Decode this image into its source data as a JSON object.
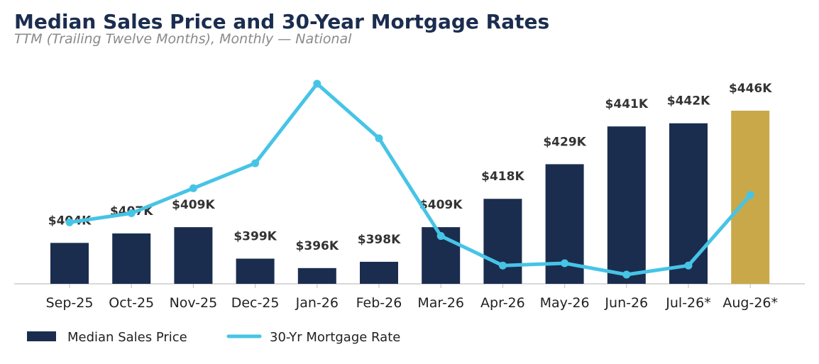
{
  "chart_data": {
    "type": "bar",
    "title": "Median Sales Price and 30-Year Mortgage Rates",
    "subtitle": "TTM (Trailing Twelve Months), Monthly — National",
    "categories": [
      "Sep-25",
      "Oct-25",
      "Nov-25",
      "Dec-25",
      "Jan-26",
      "Feb-26",
      "Mar-26",
      "Apr-26",
      "May-26",
      "Jun-26",
      "Jul-26*",
      "Aug-26*"
    ],
    "series": [
      {
        "name": "Median Sales Price",
        "type": "bar",
        "values": [
          404,
          407,
          409,
          399,
          396,
          398,
          409,
          418,
          429,
          441,
          442,
          446
        ],
        "labels": [
          "$404K",
          "$407K",
          "$409K",
          "$399K",
          "$396K",
          "$398K",
          "$409K",
          "$418K",
          "$429K",
          "$441K",
          "$442K",
          "$446K"
        ],
        "color": "#1b2d4f",
        "highlight_color": "#c9a84a",
        "highlight_category": "Aug-26*"
      },
      {
        "name": "30-Yr Mortgage Rate",
        "type": "line",
        "values": [
          6.23,
          6.27,
          6.38,
          6.49,
          6.84,
          6.6,
          6.17,
          6.04,
          6.05,
          6.0,
          6.04,
          6.35
        ],
        "color": "#46c4e6"
      }
    ],
    "xlabel": "",
    "ylabel": "",
    "grid": false,
    "legend_position": "bottom-left"
  }
}
